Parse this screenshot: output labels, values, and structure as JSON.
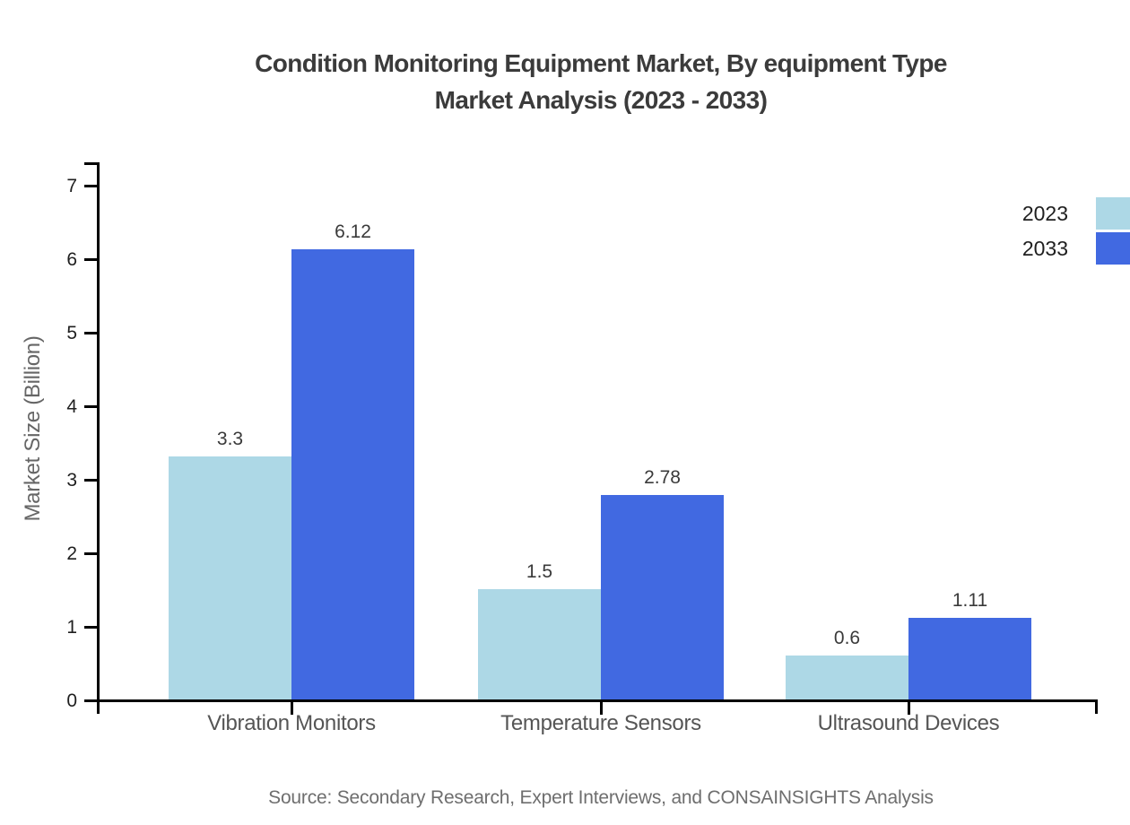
{
  "header": {
    "title_line1": "Condition Monitoring Equipment Market, By equipment Type",
    "title_line2": "Market Analysis (2023 - 2033)"
  },
  "chart_data": {
    "type": "bar",
    "title": "Condition Monitoring Equipment Market, By equipment Type Market Analysis (2023 - 2033)",
    "categories": [
      "Vibration Monitors",
      "Temperature Sensors",
      "Ultrasound Devices"
    ],
    "series": [
      {
        "name": "2023",
        "color": "#ADD8E6",
        "values": [
          3.3,
          1.5,
          0.6
        ]
      },
      {
        "name": "2033",
        "color": "#4169E1",
        "values": [
          6.12,
          2.78,
          1.11
        ]
      }
    ],
    "xlabel": "",
    "ylabel": "Market Size (Billion)",
    "ylim": [
      0,
      7.3
    ],
    "yticks": [
      0,
      1,
      2,
      3,
      4,
      5,
      6,
      7
    ],
    "grid": false,
    "legend_position": "top-right",
    "bar_value_labels_shown": true
  },
  "legend": {
    "items": [
      {
        "label": "2023",
        "color": "#ADD8E6"
      },
      {
        "label": "2033",
        "color": "#4169E1"
      }
    ]
  },
  "footer": {
    "source": "Source: Secondary Research, Expert Interviews, and CONSAINSIGHTS Analysis"
  },
  "colors": {
    "bar_2023": "#ADD8E6",
    "bar_2033": "#4169E1",
    "axis": "#000000",
    "title_text": "#3b3b3b",
    "tick_text": "#1f1f1f",
    "category_text": "#555555",
    "value_text": "#3a3a3a",
    "ylabel_text": "#666666",
    "source_text": "#6e6e6e"
  }
}
